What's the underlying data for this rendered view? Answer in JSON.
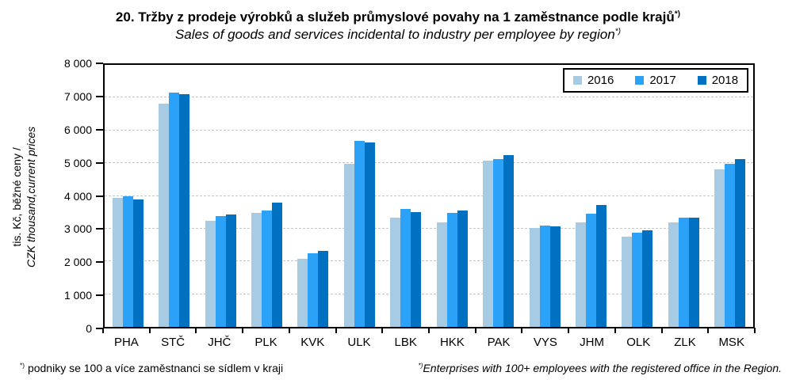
{
  "title": "20. Tržby z prodeje výrobků a služeb průmyslové povahy na 1 zaměstnance podle krajů",
  "title_sup": "*)",
  "subtitle": "Sales of goods and services incidental to industry per employee by region",
  "subtitle_sup": "*)",
  "y_axis": {
    "label_line1": "tis. Kč, běžné ceny /",
    "label_line2": "CZK thousand,current prices",
    "tick_labels": [
      "8 000",
      "7 000",
      "6 000",
      "5 000",
      "4 000",
      "3 000",
      "2 000",
      "1 000",
      "0"
    ]
  },
  "footnote_left_sup": "*)",
  "footnote_left": "podniky se 100 a více zaměstnanci se sídlem v kraji",
  "footnote_right_sup": "*)",
  "footnote_right": "Enterprises with 100+ employees with the registered office in the Region.",
  "colors": {
    "bar_2016": "#a7cbe2",
    "bar_2017": "#2ba2f8",
    "bar_2018": "#0070c0",
    "gridline": "#c6c6c6",
    "axis": "#000000"
  },
  "chart_data": {
    "type": "bar",
    "title": "20. Tržby z prodeje výrobků a služeb průmyslové povahy na 1 zaměstnance podle krajů*)",
    "subtitle": "Sales of goods and services incidental to industry per employee by region*)",
    "xlabel": "",
    "ylabel": "tis. Kč, běžné ceny / CZK thousand,current prices",
    "ylim": [
      0,
      8000
    ],
    "ytick_step": 1000,
    "grid": "horizontal-dashed",
    "legend_position": "top-right",
    "categories": [
      "PHA",
      "STČ",
      "JHČ",
      "PLK",
      "KVK",
      "ULK",
      "LBK",
      "HKK",
      "PAK",
      "VYS",
      "JHM",
      "OLK",
      "ZLK",
      "MSK"
    ],
    "series": [
      {
        "name": "2016",
        "color": "#a7cbe2",
        "values": [
          3950,
          6820,
          3250,
          3480,
          2070,
          4970,
          3340,
          3200,
          5080,
          3030,
          3190,
          2750,
          3200,
          4810
        ]
      },
      {
        "name": "2017",
        "color": "#2ba2f8",
        "values": [
          4000,
          7150,
          3380,
          3560,
          2240,
          5670,
          3590,
          3470,
          5130,
          3100,
          3450,
          2870,
          3340,
          4970
        ]
      },
      {
        "name": "2018",
        "color": "#0070c0",
        "values": [
          3900,
          7100,
          3430,
          3790,
          2320,
          5630,
          3500,
          3560,
          5250,
          3080,
          3720,
          2950,
          3340,
          5130
        ]
      }
    ]
  }
}
